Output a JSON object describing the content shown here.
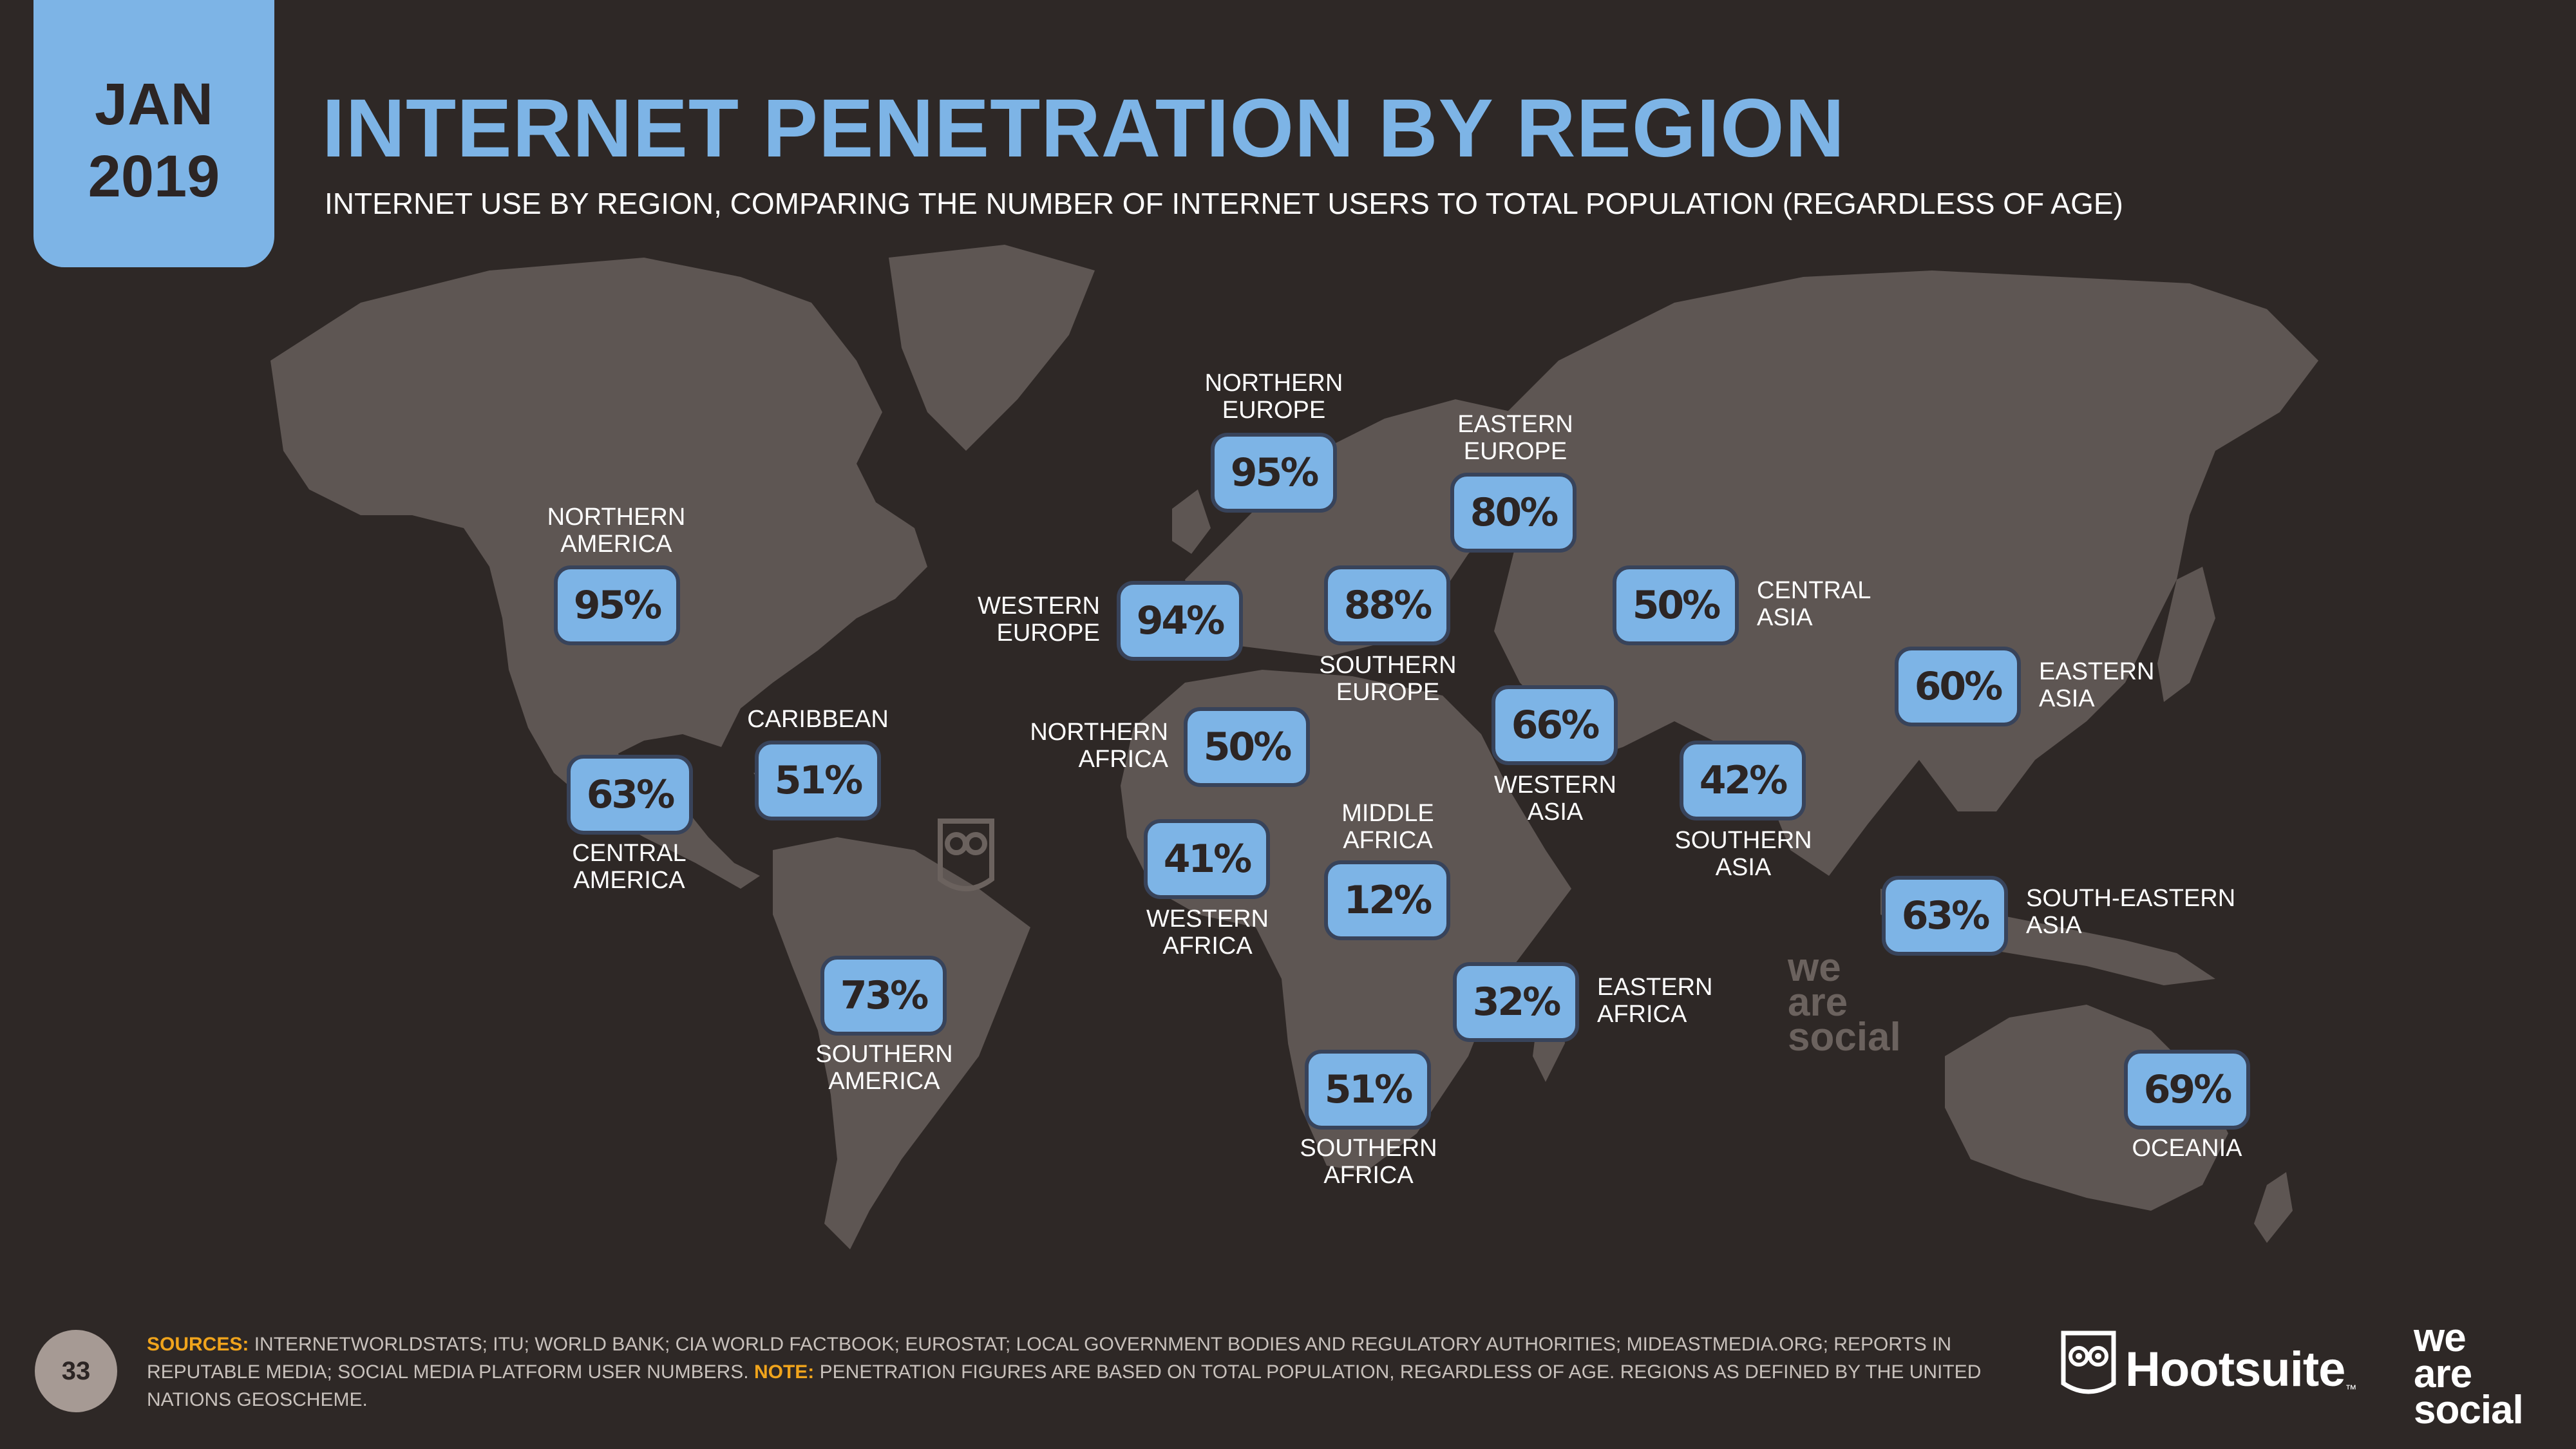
{
  "date_tab": {
    "month": "JAN",
    "year": "2019"
  },
  "title": "INTERNET PENETRATION BY REGION",
  "subtitle": "INTERNET USE BY REGION, COMPARING THE NUMBER OF INTERNET USERS TO TOTAL POPULATION (REGARDLESS OF AGE)",
  "regions": [
    {
      "name": "NORTHERN\nAMERICA",
      "value": "95%"
    },
    {
      "name": "CENTRAL\nAMERICA",
      "value": "63%"
    },
    {
      "name": "CARIBBEAN",
      "value": "51%"
    },
    {
      "name": "SOUTHERN\nAMERICA",
      "value": "73%"
    },
    {
      "name": "NORTHERN\nEUROPE",
      "value": "95%"
    },
    {
      "name": "WESTERN\nEUROPE",
      "value": "94%"
    },
    {
      "name": "SOUTHERN\nEUROPE",
      "value": "88%"
    },
    {
      "name": "EASTERN\nEUROPE",
      "value": "80%"
    },
    {
      "name": "NORTHERN\nAFRICA",
      "value": "50%"
    },
    {
      "name": "WESTERN\nAFRICA",
      "value": "41%"
    },
    {
      "name": "MIDDLE\nAFRICA",
      "value": "12%"
    },
    {
      "name": "EASTERN\nAFRICA",
      "value": "32%"
    },
    {
      "name": "SOUTHERN\nAFRICA",
      "value": "51%"
    },
    {
      "name": "WESTERN\nASIA",
      "value": "66%"
    },
    {
      "name": "CENTRAL\nASIA",
      "value": "50%"
    },
    {
      "name": "SOUTHERN\nASIA",
      "value": "42%"
    },
    {
      "name": "EASTERN\nASIA",
      "value": "60%"
    },
    {
      "name": "SOUTH-EASTERN\nASIA",
      "value": "63%"
    },
    {
      "name": "OCEANIA",
      "value": "69%"
    }
  ],
  "footer": {
    "page_number": "33",
    "sources_label": "SOURCES:",
    "sources_text": "INTERNETWORLDSTATS; ITU; WORLD BANK; CIA WORLD FACTBOOK; EUROSTAT; LOCAL GOVERNMENT BODIES AND REGULATORY AUTHORITIES; MIDEASTMEDIA.ORG; REPORTS IN REPUTABLE MEDIA; SOCIAL MEDIA PLATFORM USER NUMBERS.",
    "note_label": "NOTE:",
    "note_text": "PENETRATION FIGURES ARE BASED ON TOTAL POPULATION, REGARDLESS OF AGE. REGIONS AS DEFINED BY THE UNITED NATIONS GEOSCHEME."
  },
  "branding": {
    "hootsuite": "Hootsuite",
    "trademark": "™",
    "we_are_social": "we\nare\nsocial",
    "map_watermark": "we\nare\nsocial"
  },
  "colors": {
    "background": "#2e2826",
    "land": "#5e5653",
    "accent": "#7db4e6",
    "highlight": "#f0a41c"
  }
}
